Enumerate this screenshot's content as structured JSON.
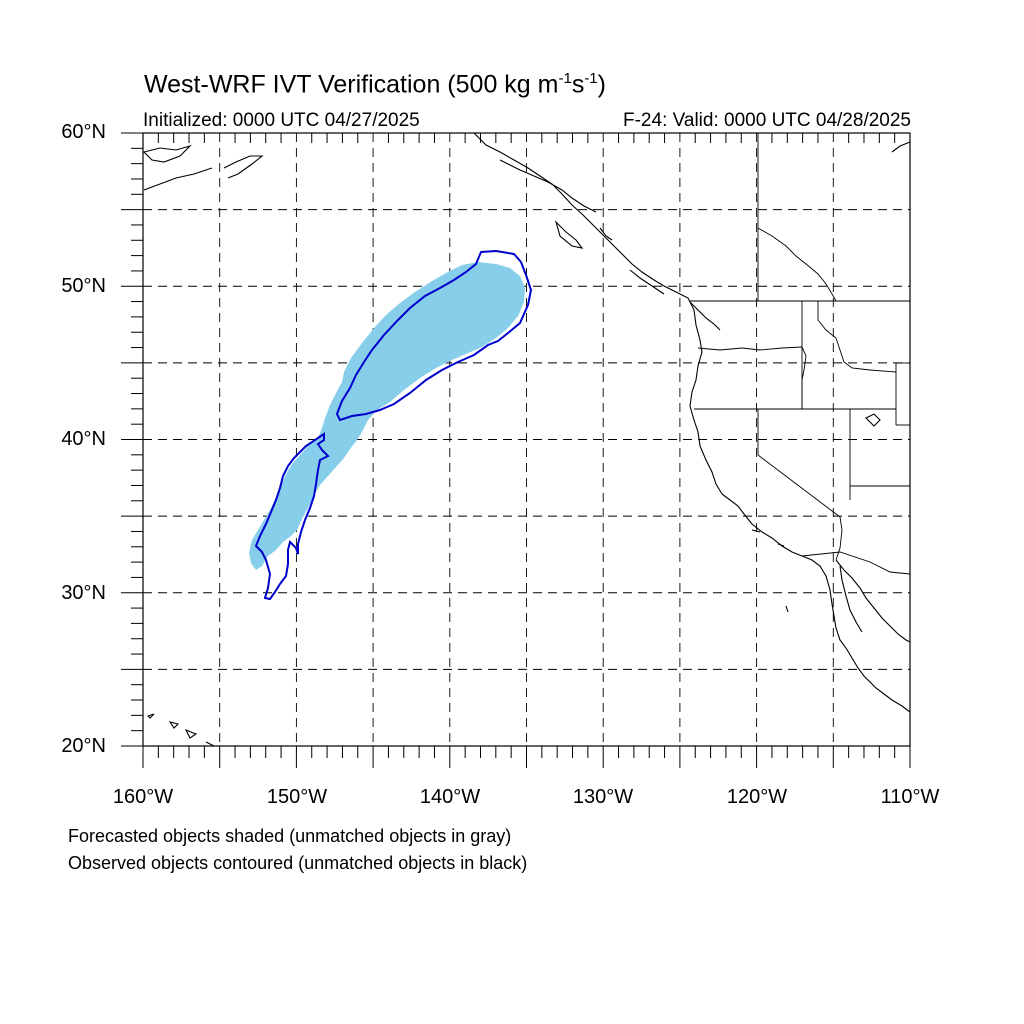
{
  "title": {
    "main": "West-WRF IVT Verification (500 kg m",
    "sup1": "-1",
    "mid": "s",
    "sup2": "-1",
    "end": ")"
  },
  "initialized": "Initialized: 0000 UTC 04/27/2025",
  "valid": "F-24: Valid: 0000 UTC 04/28/2025",
  "lat_labels": [
    "60°N",
    "50°N",
    "40°N",
    "30°N",
    "20°N"
  ],
  "lon_labels": [
    "160°W",
    "150°W",
    "140°W",
    "130°W",
    "120°W",
    "110°W"
  ],
  "notes": [
    "Forecasted objects shaded (unmatched objects in gray)",
    "Observed objects contoured (unmatched objects in black)"
  ],
  "colors": {
    "forecast_fill": "#87ceeb",
    "observed_contour": "#0000cc",
    "grid": "#000000",
    "coast": "#000000"
  },
  "map": {
    "lon_range": [
      -160,
      -110
    ],
    "lat_range": [
      20,
      60
    ],
    "grid_lon_step": 5,
    "grid_lat_step": 5,
    "grid_style": "dashed"
  }
}
